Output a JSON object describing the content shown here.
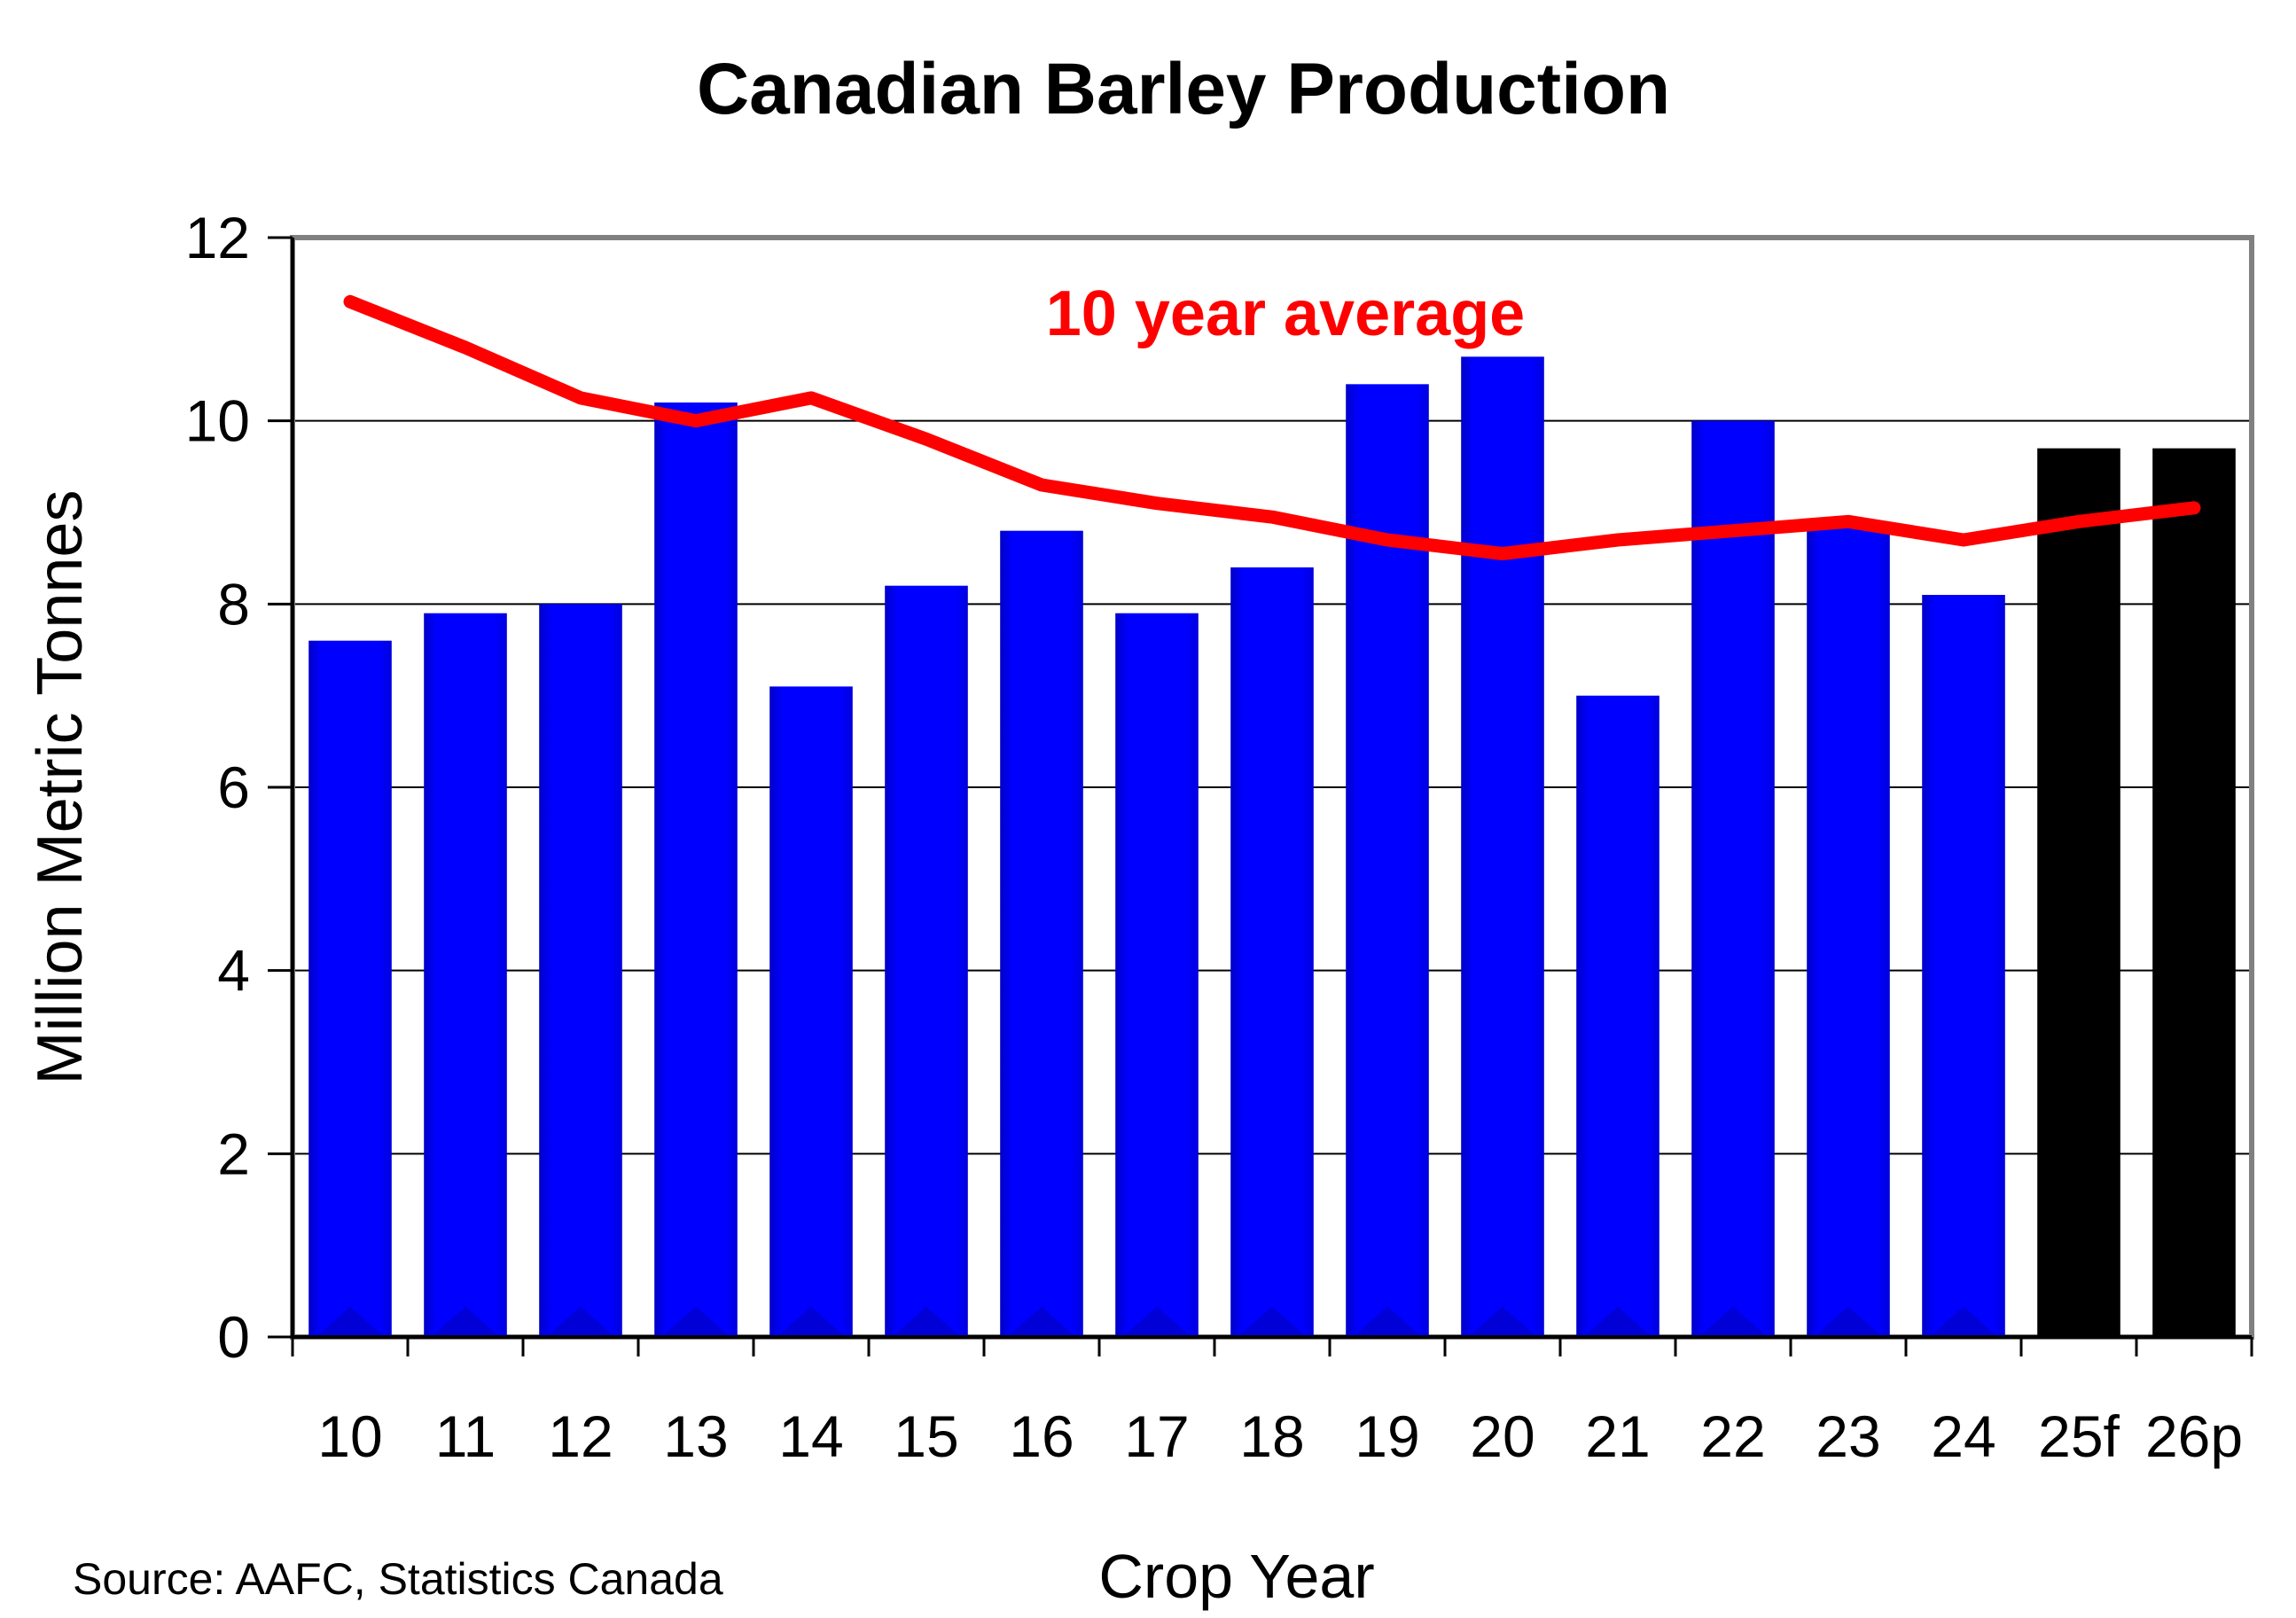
{
  "chart_data": {
    "type": "bar",
    "title": "Canadian Barley Production",
    "xlabel": "Crop Year",
    "ylabel": "Million Metric Tonnes",
    "ylim": [
      0,
      12
    ],
    "yticks": [
      0,
      2,
      4,
      6,
      8,
      10,
      12
    ],
    "grid": true,
    "categories": [
      "10",
      "11",
      "12",
      "13",
      "14",
      "15",
      "16",
      "17",
      "18",
      "19",
      "20",
      "21",
      "22",
      "23",
      "24",
      "25f",
      "26p"
    ],
    "series": [
      {
        "values": [
          7.6,
          7.9,
          8.0,
          10.2,
          7.1,
          8.2,
          8.8,
          7.9,
          8.4,
          10.4,
          10.7,
          7.0,
          10.0,
          8.9,
          8.1,
          9.7,
          9.7
        ],
        "color": "#0000ff",
        "forecast_color": "#000000",
        "forecast_categories": [
          "25f",
          "26p"
        ]
      },
      {
        "name": "10 year average",
        "type": "line",
        "color": "#ff0000",
        "values": [
          11.3,
          10.8,
          10.25,
          10.0,
          10.25,
          9.8,
          9.3,
          9.1,
          8.95,
          8.7,
          8.55,
          8.7,
          8.8,
          8.9,
          8.7,
          8.9,
          9.05
        ]
      }
    ],
    "annotation": "10 year average",
    "source": "Source: AAFC, Statistics Canada"
  }
}
